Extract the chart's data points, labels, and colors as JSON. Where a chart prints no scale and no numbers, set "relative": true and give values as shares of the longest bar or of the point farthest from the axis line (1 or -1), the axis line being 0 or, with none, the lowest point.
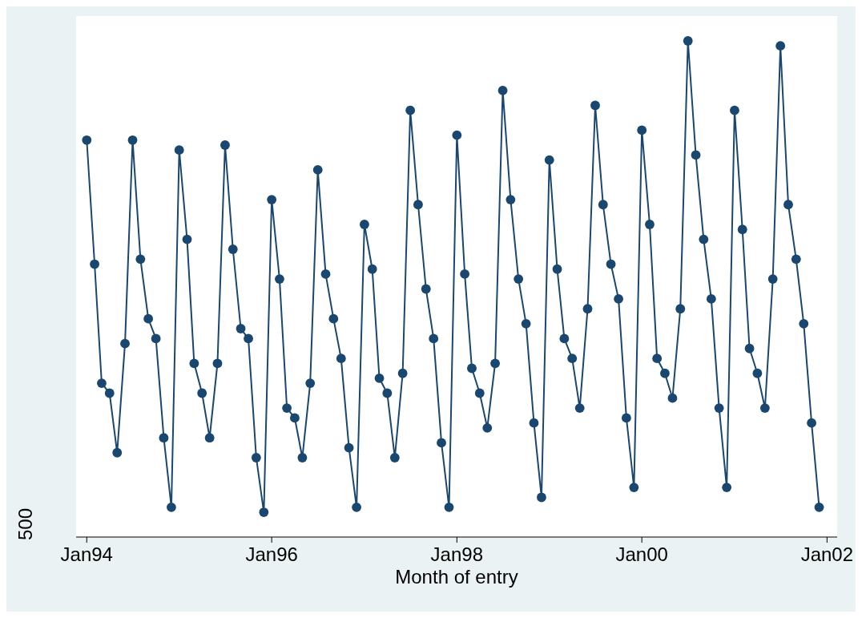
{
  "chart_data": {
    "type": "line",
    "xlabel": "Month of entry",
    "relative": true,
    "marker": "circle",
    "line_style": "solid",
    "annotations": [
      "500"
    ],
    "x": [
      "1994-01",
      "1994-02",
      "1994-03",
      "1994-04",
      "1994-05",
      "1994-06",
      "1994-07",
      "1994-08",
      "1994-09",
      "1994-10",
      "1994-11",
      "1994-12",
      "1995-01",
      "1995-02",
      "1995-03",
      "1995-04",
      "1995-05",
      "1995-06",
      "1995-07",
      "1995-08",
      "1995-09",
      "1995-10",
      "1995-11",
      "1995-12",
      "1996-01",
      "1996-02",
      "1996-03",
      "1996-04",
      "1996-05",
      "1996-06",
      "1996-07",
      "1996-08",
      "1996-09",
      "1996-10",
      "1996-11",
      "1996-12",
      "1997-01",
      "1997-02",
      "1997-03",
      "1997-04",
      "1997-05",
      "1997-06",
      "1997-07",
      "1997-08",
      "1997-09",
      "1997-10",
      "1997-11",
      "1997-12",
      "1998-01",
      "1998-02",
      "1998-03",
      "1998-04",
      "1998-05",
      "1998-06",
      "1998-07",
      "1998-08",
      "1998-09",
      "1998-10",
      "1998-11",
      "1998-12",
      "1999-01",
      "1999-02",
      "1999-03",
      "1999-04",
      "1999-05",
      "1999-06",
      "1999-07",
      "1999-08",
      "1999-09",
      "1999-10",
      "1999-11",
      "1999-12",
      "2000-01",
      "2000-02",
      "2000-03",
      "2000-04",
      "2000-05",
      "2000-06",
      "2000-07",
      "2000-08",
      "2000-09",
      "2000-10",
      "2000-11",
      "2000-12",
      "2001-01",
      "2001-02",
      "2001-03",
      "2001-04",
      "2001-05",
      "2001-06",
      "2001-07",
      "2001-08",
      "2001-09",
      "2001-10",
      "2001-11",
      "2001-12"
    ],
    "xlim": [
      "1993-11-20",
      "2002-02-10"
    ],
    "xticks": [
      {
        "value": "1994-01",
        "label": "Jan94"
      },
      {
        "value": "1996-01",
        "label": "Jan96"
      },
      {
        "value": "1998-01",
        "label": "Jan98"
      },
      {
        "value": "2000-01",
        "label": "Jan00"
      },
      {
        "value": "2002-01",
        "label": "Jan02"
      }
    ],
    "series": [
      {
        "color": "#1a476f",
        "values": [
          0.8,
          0.55,
          0.31,
          0.29,
          0.17,
          0.39,
          0.8,
          0.56,
          0.44,
          0.4,
          0.2,
          0.06,
          0.78,
          0.6,
          0.35,
          0.29,
          0.2,
          0.35,
          0.79,
          0.58,
          0.42,
          0.4,
          0.16,
          0.05,
          0.68,
          0.52,
          0.26,
          0.24,
          0.16,
          0.31,
          0.74,
          0.53,
          0.44,
          0.36,
          0.18,
          0.06,
          0.63,
          0.54,
          0.32,
          0.29,
          0.16,
          0.33,
          0.86,
          0.67,
          0.5,
          0.4,
          0.19,
          0.06,
          0.81,
          0.53,
          0.34,
          0.29,
          0.22,
          0.35,
          0.9,
          0.68,
          0.52,
          0.43,
          0.23,
          0.08,
          0.76,
          0.54,
          0.4,
          0.36,
          0.26,
          0.46,
          0.87,
          0.67,
          0.55,
          0.48,
          0.24,
          0.1,
          0.82,
          0.63,
          0.36,
          0.33,
          0.28,
          0.46,
          1.0,
          0.77,
          0.6,
          0.48,
          0.26,
          0.1,
          0.86,
          0.62,
          0.38,
          0.33,
          0.26,
          0.52,
          0.99,
          0.67,
          0.56,
          0.43,
          0.23,
          0.06
        ]
      }
    ]
  }
}
